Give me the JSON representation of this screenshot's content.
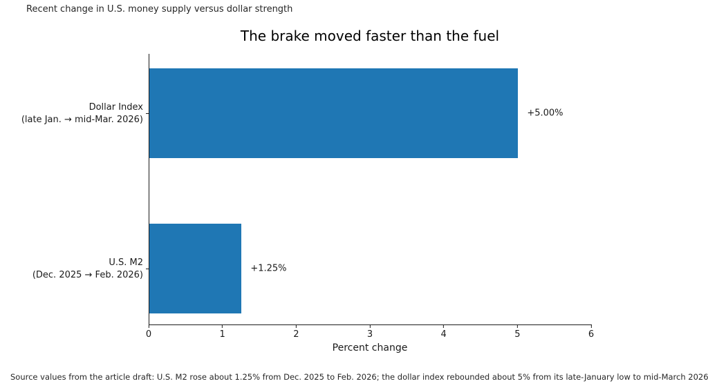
{
  "header": {
    "supertitle": "Recent change in U.S. money supply versus dollar strength"
  },
  "chart_data": {
    "type": "bar",
    "orientation": "horizontal",
    "title": "The brake moved faster than the fuel",
    "xlabel": "Percent change",
    "xlim": [
      0,
      6
    ],
    "xticks": [
      "0",
      "1",
      "2",
      "3",
      "4",
      "5",
      "6"
    ],
    "grid": false,
    "legend": false,
    "bar_color": "#1f77b4",
    "bars": [
      {
        "category": "Dollar Index (late Jan. → mid-Mar. 2026)",
        "label_line1": "Dollar Index",
        "label_line2": "(late Jan. → mid-Mar. 2026)",
        "value": 5.0,
        "value_label": "+5.00%"
      },
      {
        "category": "U.S. M2 (Dec. 2025 → Feb. 2026)",
        "label_line1": "U.S. M2",
        "label_line2": "(Dec. 2025 → Feb. 2026)",
        "value": 1.25,
        "value_label": "+1.25%"
      }
    ]
  },
  "footnote": "Source values from the article draft: U.S. M2 rose about 1.25% from Dec. 2025 to Feb. 2026; the dollar index rebounded about 5% from its late-January low to mid-March 2026."
}
